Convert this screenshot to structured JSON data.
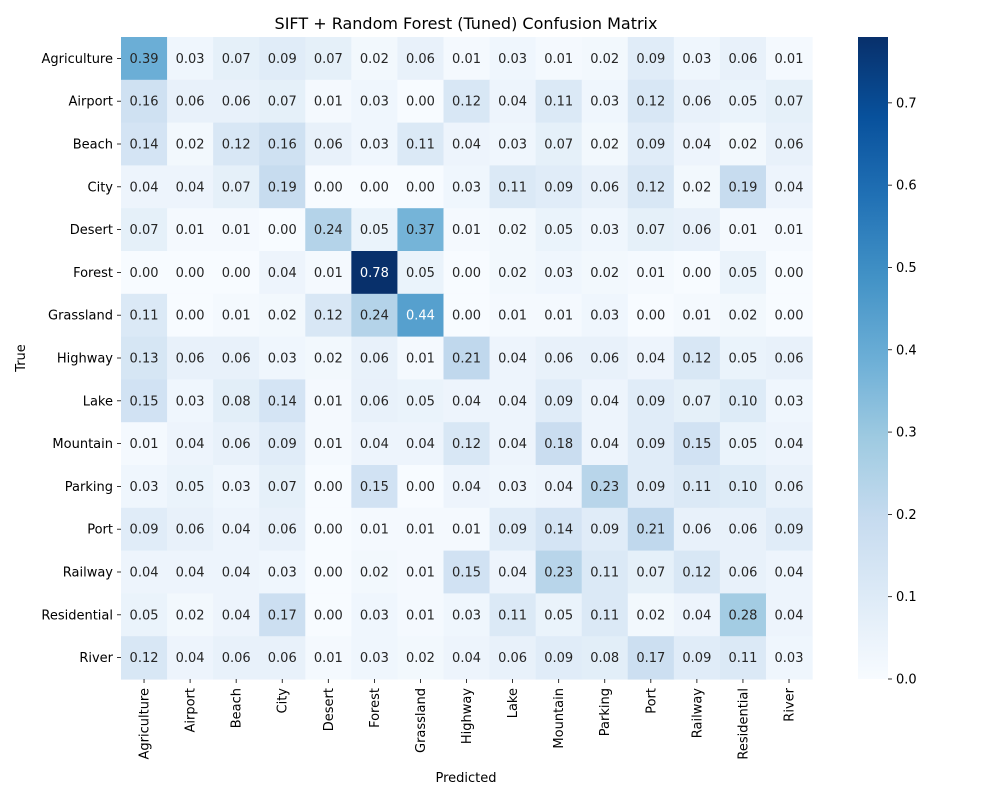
{
  "chart_data": {
    "type": "heatmap",
    "title": "SIFT + Random Forest (Tuned) Confusion Matrix",
    "xlabel": "Predicted",
    "ylabel": "True",
    "x_categories": [
      "Agriculture",
      "Airport",
      "Beach",
      "City",
      "Desert",
      "Forest",
      "Grassland",
      "Highway",
      "Lake",
      "Mountain",
      "Parking",
      "Port",
      "Railway",
      "Residential",
      "River"
    ],
    "y_categories": [
      "Agriculture",
      "Airport",
      "Beach",
      "City",
      "Desert",
      "Forest",
      "Grassland",
      "Highway",
      "Lake",
      "Mountain",
      "Parking",
      "Port",
      "Railway",
      "Residential",
      "River"
    ],
    "values": [
      [
        0.39,
        0.03,
        0.07,
        0.09,
        0.07,
        0.02,
        0.06,
        0.01,
        0.03,
        0.01,
        0.02,
        0.09,
        0.03,
        0.06,
        0.01
      ],
      [
        0.16,
        0.06,
        0.06,
        0.07,
        0.01,
        0.03,
        0.0,
        0.12,
        0.04,
        0.11,
        0.03,
        0.12,
        0.06,
        0.05,
        0.07
      ],
      [
        0.14,
        0.02,
        0.12,
        0.16,
        0.06,
        0.03,
        0.11,
        0.04,
        0.03,
        0.07,
        0.02,
        0.09,
        0.04,
        0.02,
        0.06
      ],
      [
        0.04,
        0.04,
        0.07,
        0.19,
        0.0,
        0.0,
        0.0,
        0.03,
        0.11,
        0.09,
        0.06,
        0.12,
        0.02,
        0.19,
        0.04
      ],
      [
        0.07,
        0.01,
        0.01,
        0.0,
        0.24,
        0.05,
        0.37,
        0.01,
        0.02,
        0.05,
        0.03,
        0.07,
        0.06,
        0.01,
        0.01
      ],
      [
        0.0,
        0.0,
        0.0,
        0.04,
        0.01,
        0.78,
        0.05,
        0.0,
        0.02,
        0.03,
        0.02,
        0.01,
        0.0,
        0.05,
        0.0
      ],
      [
        0.11,
        0.0,
        0.01,
        0.02,
        0.12,
        0.24,
        0.44,
        0.0,
        0.01,
        0.01,
        0.03,
        0.0,
        0.01,
        0.02,
        0.0
      ],
      [
        0.13,
        0.06,
        0.06,
        0.03,
        0.02,
        0.06,
        0.01,
        0.21,
        0.04,
        0.06,
        0.06,
        0.04,
        0.12,
        0.05,
        0.06
      ],
      [
        0.15,
        0.03,
        0.08,
        0.14,
        0.01,
        0.06,
        0.05,
        0.04,
        0.04,
        0.09,
        0.04,
        0.09,
        0.07,
        0.1,
        0.03
      ],
      [
        0.01,
        0.04,
        0.06,
        0.09,
        0.01,
        0.04,
        0.04,
        0.12,
        0.04,
        0.18,
        0.04,
        0.09,
        0.15,
        0.05,
        0.04
      ],
      [
        0.03,
        0.05,
        0.03,
        0.07,
        0.0,
        0.15,
        0.0,
        0.04,
        0.03,
        0.04,
        0.23,
        0.09,
        0.11,
        0.1,
        0.06
      ],
      [
        0.09,
        0.06,
        0.04,
        0.06,
        0.0,
        0.01,
        0.01,
        0.01,
        0.09,
        0.14,
        0.09,
        0.21,
        0.06,
        0.06,
        0.09
      ],
      [
        0.04,
        0.04,
        0.04,
        0.03,
        0.0,
        0.02,
        0.01,
        0.15,
        0.04,
        0.23,
        0.11,
        0.07,
        0.12,
        0.06,
        0.04
      ],
      [
        0.05,
        0.02,
        0.04,
        0.17,
        0.0,
        0.03,
        0.01,
        0.03,
        0.11,
        0.05,
        0.11,
        0.02,
        0.04,
        0.28,
        0.04
      ],
      [
        0.12,
        0.04,
        0.06,
        0.06,
        0.01,
        0.03,
        0.02,
        0.04,
        0.06,
        0.09,
        0.08,
        0.17,
        0.09,
        0.11,
        0.03
      ]
    ],
    "colorbar": {
      "colormap": "Blues",
      "vmin": 0.0,
      "vmax": 0.78,
      "ticks": [
        0.0,
        0.1,
        0.2,
        0.3,
        0.4,
        0.5,
        0.6,
        0.7
      ],
      "tick_labels": [
        "0.0",
        "0.1",
        "0.2",
        "0.3",
        "0.4",
        "0.5",
        "0.6",
        "0.7"
      ]
    },
    "annotations": true,
    "value_format": "2 decimals",
    "grid": false
  }
}
